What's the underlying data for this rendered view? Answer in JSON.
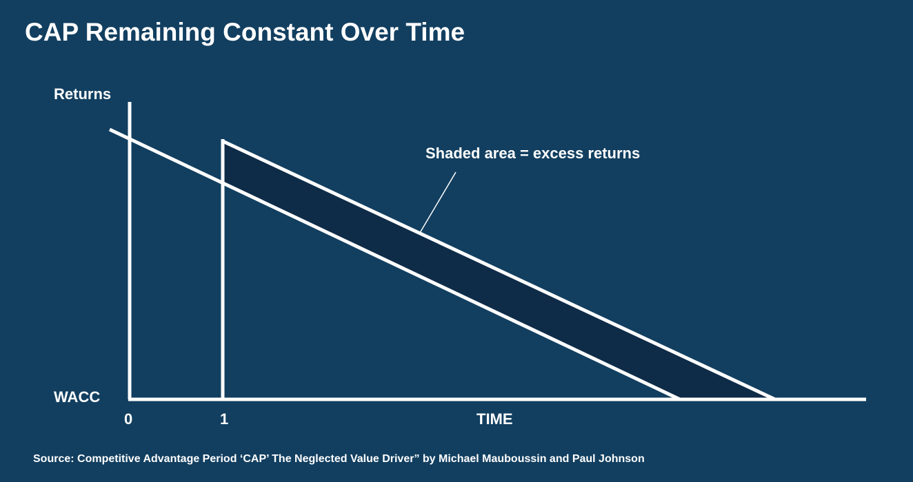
{
  "title": "CAP Remaining Constant Over Time",
  "axes": {
    "y_top_label": "Returns",
    "y_bottom_label": "WACC",
    "x_label": "TIME",
    "x_ticks": [
      "0",
      "1"
    ]
  },
  "annotation": "Shaded area = excess returns",
  "source": "Source: Competitive Advantage Period ‘CAP’ The Neglected Value Driver” by Michael Mauboussin and Paul Johnson",
  "colors": {
    "background": "#123f60",
    "lines": "#ffffff",
    "shaded_area": "#0e2c48"
  }
}
